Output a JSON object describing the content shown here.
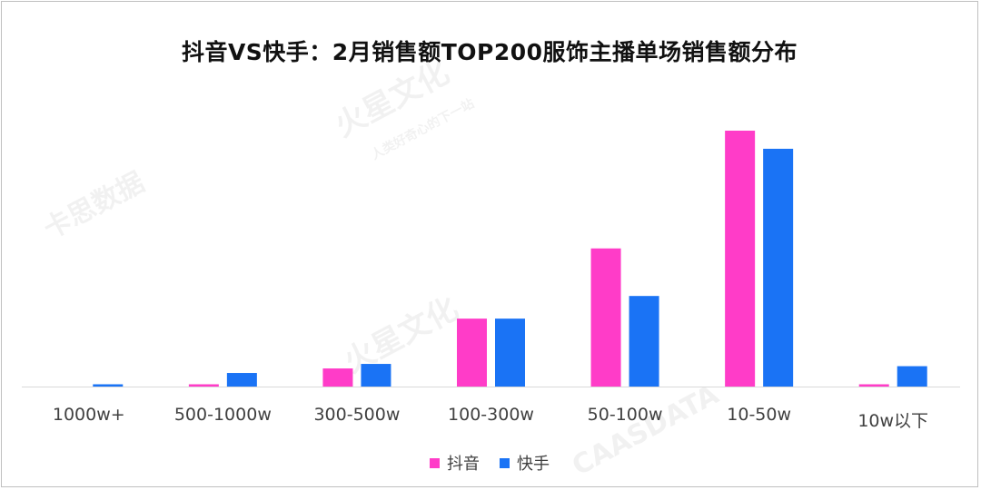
{
  "chart_data": {
    "type": "bar",
    "title": "抖音VS快手：2月销售额TOP200服饰主播单场销售额分布",
    "categories": [
      "1000w+",
      "500-1000w",
      "300-500w",
      "100-300w",
      "50-100w",
      "10-50w",
      "10w以下"
    ],
    "series": [
      {
        "name": "抖音",
        "color": "#ff3cc8",
        "values": [
          0,
          1,
          8,
          30,
          61,
          113,
          1
        ]
      },
      {
        "name": "快手",
        "color": "#1a73f5",
        "values": [
          1,
          6,
          10,
          30,
          40,
          105,
          9
        ]
      }
    ],
    "ylim": [
      0,
      150
    ],
    "grid": false,
    "y_axis_visible": false,
    "legend_position": "bottom-center"
  },
  "watermarks": [
    "卡思数据",
    "CAASDATA",
    "火星文化",
    "人类好奇心的下一站"
  ]
}
